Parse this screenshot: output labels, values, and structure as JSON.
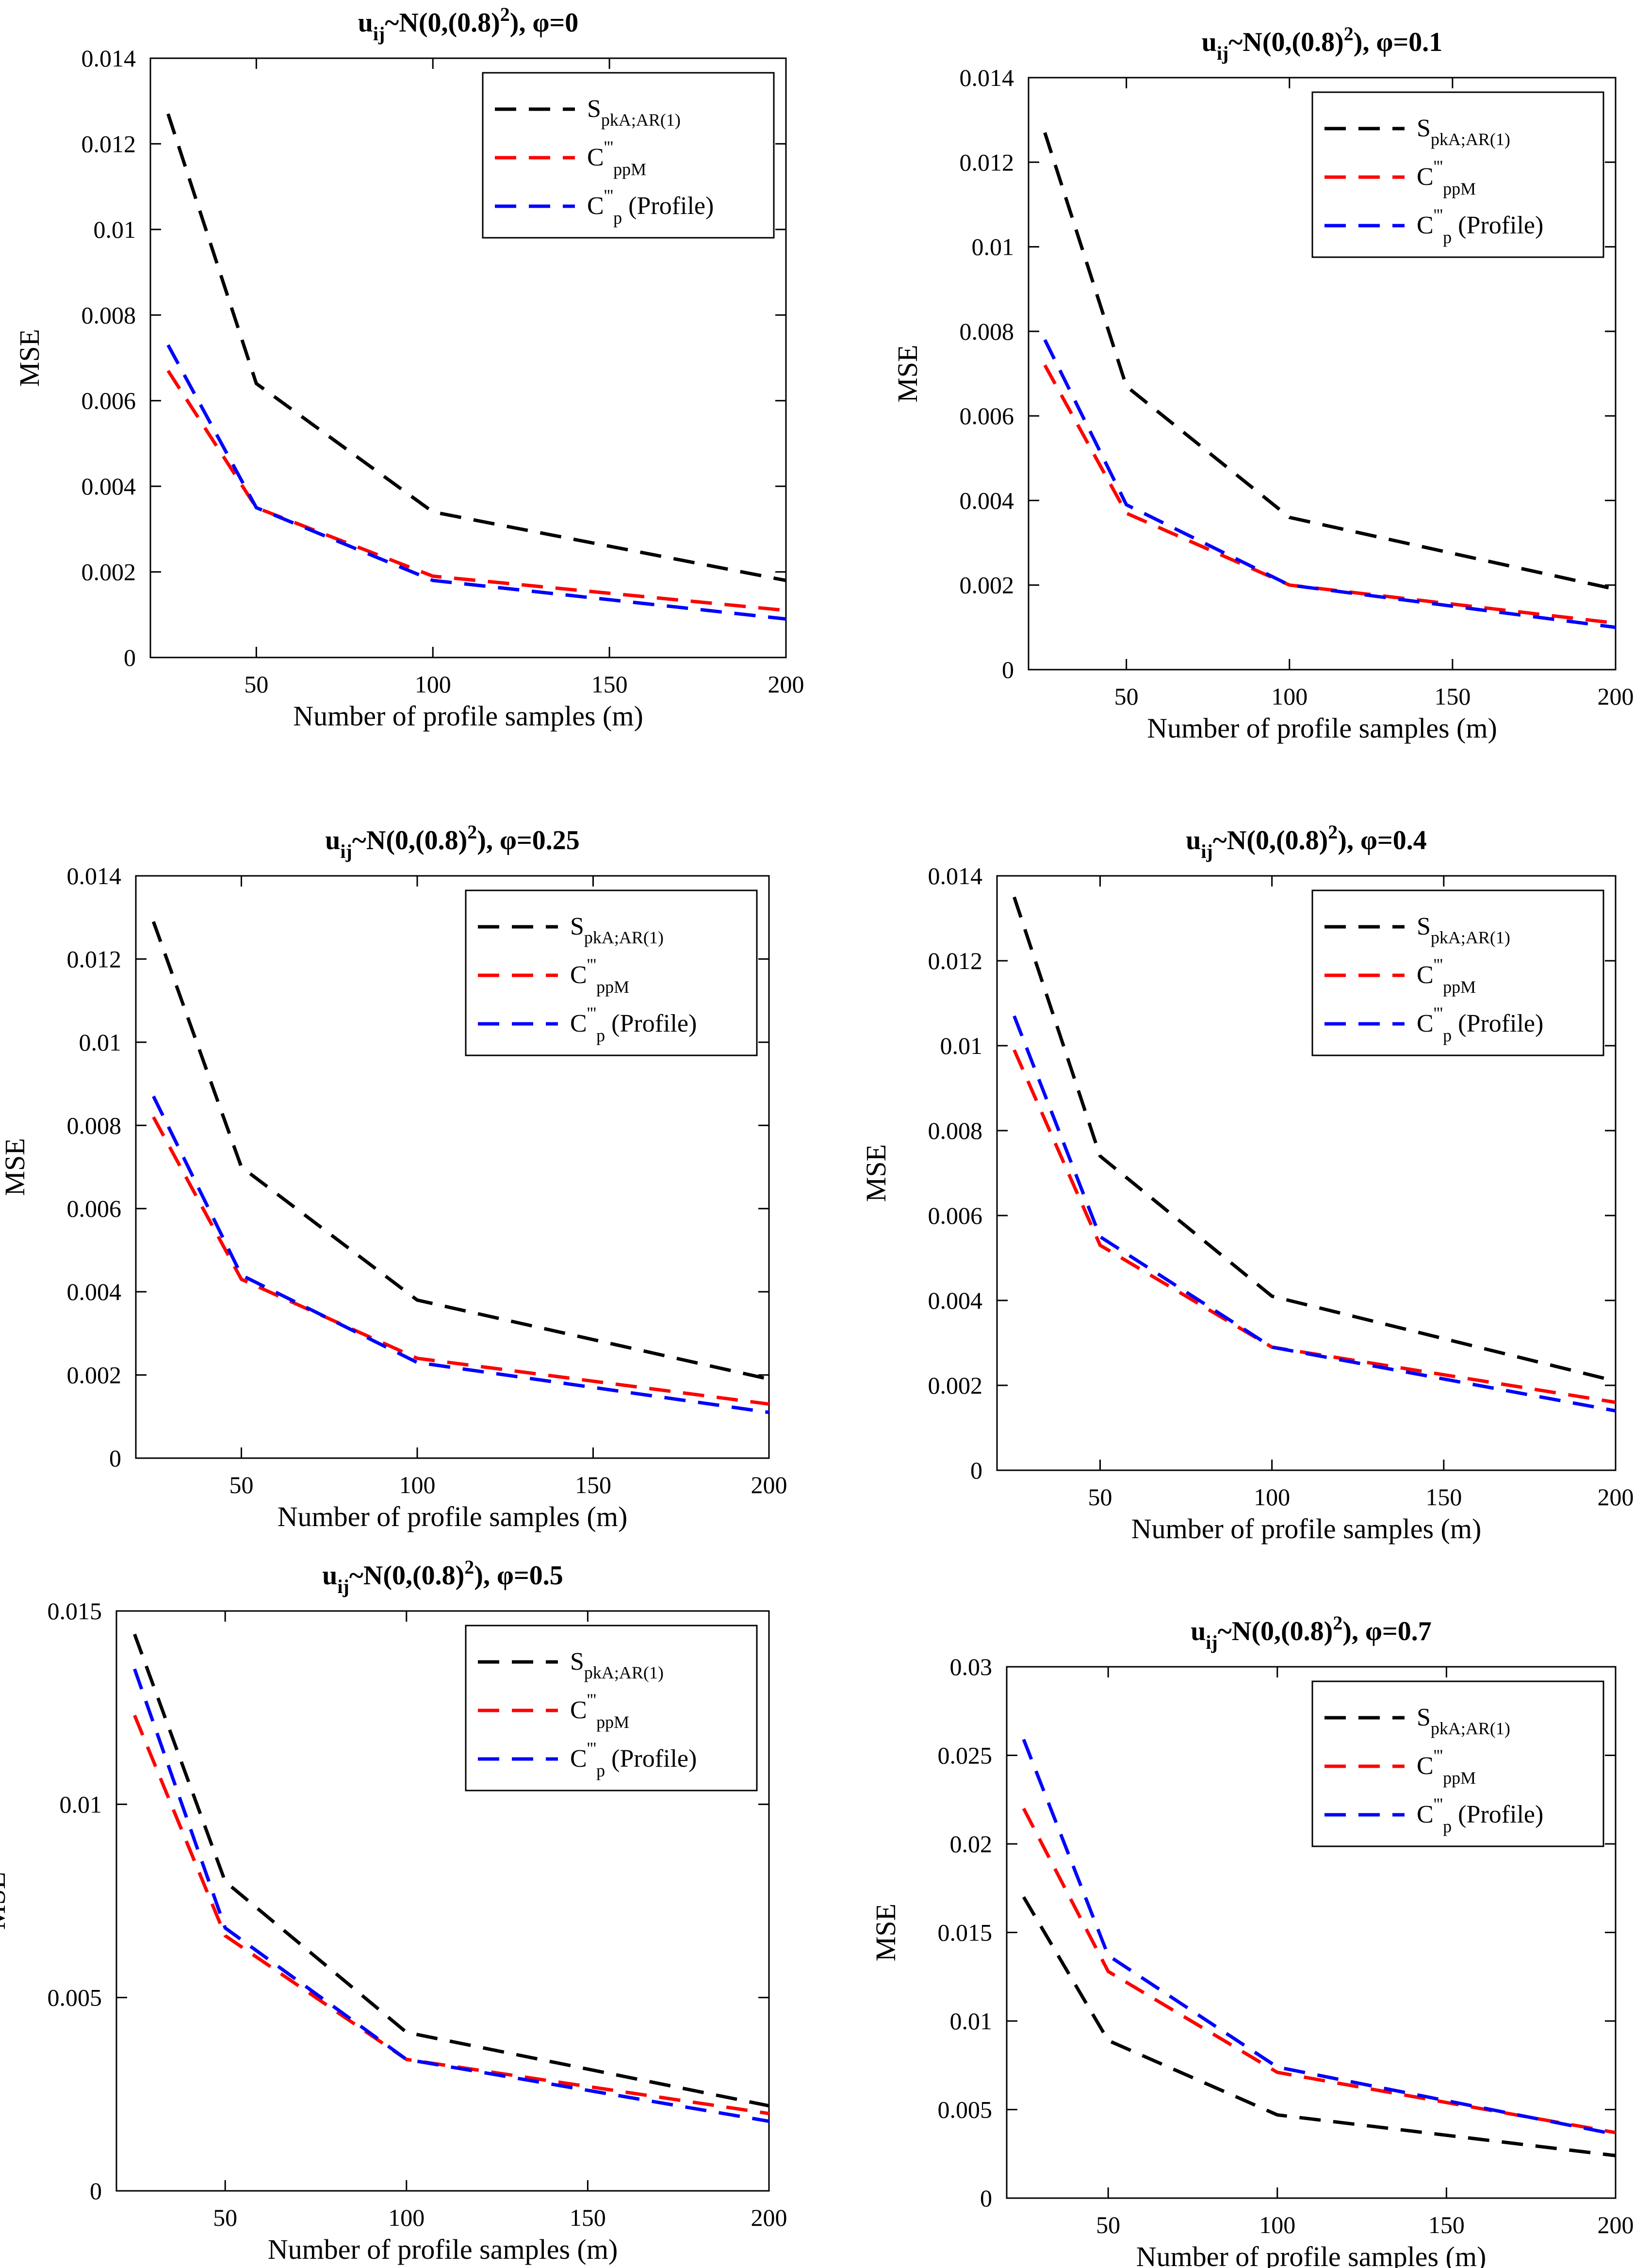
{
  "colors": {
    "S_pkA": "#000000",
    "C_ppM": "#ff0000",
    "C_p_profile": "#0000ff",
    "axis": "#000000",
    "background": "#ffffff"
  },
  "legend": [
    {
      "key": "S_pkA",
      "main": "S",
      "sub": "pkA;AR(1)",
      "sup": "",
      "tail": ""
    },
    {
      "key": "C_ppM",
      "main": "C",
      "sub": "ppM",
      "sup": "'''",
      "tail": ""
    },
    {
      "key": "C_p_profile",
      "main": "C",
      "sub": "p",
      "sup": "'''",
      "tail": " (Profile)"
    }
  ],
  "chart_data": [
    {
      "type": "line",
      "title": {
        "base": "u",
        "sub": "ij",
        "rest": "~N(0,(0.8)",
        "sup": "2",
        "end": "), φ=0"
      },
      "xlabel": "Number of profile samples (m)",
      "ylabel": "MSE",
      "x": [
        25,
        50,
        100,
        200
      ],
      "xlim": [
        20,
        200
      ],
      "ylim": [
        0,
        0.014
      ],
      "xticks": [
        "50",
        "100",
        "150",
        "200"
      ],
      "yticks": [
        "0",
        "0.002",
        "0.004",
        "0.006",
        "0.008",
        "0.01",
        "0.012",
        "0.014"
      ],
      "legend_position": "top-right",
      "series": [
        {
          "name": "S_pkA",
          "values": [
            0.0127,
            0.0064,
            0.0034,
            0.0018
          ]
        },
        {
          "name": "C_ppM",
          "values": [
            0.0067,
            0.0035,
            0.0019,
            0.0011
          ]
        },
        {
          "name": "C_p_profile",
          "values": [
            0.0073,
            0.0035,
            0.0018,
            0.0009
          ]
        }
      ]
    },
    {
      "type": "line",
      "title": {
        "base": "u",
        "sub": "ij",
        "rest": "~N(0,(0.8)",
        "sup": "2",
        "end": "), φ=0.1"
      },
      "xlabel": "Number of profile samples (m)",
      "ylabel": "MSE",
      "x": [
        25,
        50,
        100,
        200
      ],
      "xlim": [
        20,
        200
      ],
      "ylim": [
        0,
        0.014
      ],
      "xticks": [
        "50",
        "100",
        "150",
        "200"
      ],
      "yticks": [
        "0",
        "0.002",
        "0.004",
        "0.006",
        "0.008",
        "0.01",
        "0.012",
        "0.014"
      ],
      "legend_position": "top-right",
      "series": [
        {
          "name": "S_pkA",
          "values": [
            0.0127,
            0.0067,
            0.0036,
            0.0019
          ]
        },
        {
          "name": "C_ppM",
          "values": [
            0.0072,
            0.0037,
            0.002,
            0.0011
          ]
        },
        {
          "name": "C_p_profile",
          "values": [
            0.0078,
            0.0039,
            0.002,
            0.001
          ]
        }
      ]
    },
    {
      "type": "line",
      "title": {
        "base": "u",
        "sub": "ij",
        "rest": "~N(0,(0.8)",
        "sup": "2",
        "end": "), φ=0.25"
      },
      "xlabel": "Number of profile samples (m)",
      "ylabel": "MSE",
      "x": [
        25,
        50,
        100,
        200
      ],
      "xlim": [
        20,
        200
      ],
      "ylim": [
        0,
        0.014
      ],
      "xticks": [
        "50",
        "100",
        "150",
        "200"
      ],
      "yticks": [
        "0",
        "0.002",
        "0.004",
        "0.006",
        "0.008",
        "0.01",
        "0.012",
        "0.014"
      ],
      "legend_position": "top-right",
      "series": [
        {
          "name": "S_pkA",
          "values": [
            0.0129,
            0.007,
            0.0038,
            0.0019
          ]
        },
        {
          "name": "C_ppM",
          "values": [
            0.0082,
            0.0043,
            0.0024,
            0.0013
          ]
        },
        {
          "name": "C_p_profile",
          "values": [
            0.0087,
            0.0044,
            0.0023,
            0.0011
          ]
        }
      ]
    },
    {
      "type": "line",
      "title": {
        "base": "u",
        "sub": "ij",
        "rest": "~N(0,(0.8)",
        "sup": "2",
        "end": "), φ=0.4"
      },
      "xlabel": "Number of profile samples (m)",
      "ylabel": "MSE",
      "x": [
        25,
        50,
        100,
        200
      ],
      "xlim": [
        20,
        200
      ],
      "ylim": [
        0,
        0.014
      ],
      "xticks": [
        "50",
        "100",
        "150",
        "200"
      ],
      "yticks": [
        "0",
        "0.002",
        "0.004",
        "0.006",
        "0.008",
        "0.01",
        "0.012",
        "0.014"
      ],
      "legend_position": "top-right",
      "series": [
        {
          "name": "S_pkA",
          "values": [
            0.0135,
            0.0074,
            0.0041,
            0.0021
          ]
        },
        {
          "name": "C_ppM",
          "values": [
            0.0099,
            0.0053,
            0.0029,
            0.0016
          ]
        },
        {
          "name": "C_p_profile",
          "values": [
            0.0107,
            0.0055,
            0.0029,
            0.0014
          ]
        }
      ]
    },
    {
      "type": "line",
      "title": {
        "base": "u",
        "sub": "ij",
        "rest": "~N(0,(0.8)",
        "sup": "2",
        "end": "), φ=0.5"
      },
      "xlabel": "Number of profile samples (m)",
      "ylabel": "MSE",
      "x": [
        25,
        50,
        100,
        200
      ],
      "xlim": [
        20,
        200
      ],
      "ylim": [
        0,
        0.015
      ],
      "xticks": [
        "50",
        "100",
        "150",
        "200"
      ],
      "yticks": [
        "0",
        "0.005",
        "0.01",
        "0.015"
      ],
      "legend_position": "top-right",
      "series": [
        {
          "name": "S_pkA",
          "values": [
            0.0144,
            0.008,
            0.0041,
            0.0022
          ]
        },
        {
          "name": "C_ppM",
          "values": [
            0.0123,
            0.0066,
            0.0034,
            0.002
          ]
        },
        {
          "name": "C_p_profile",
          "values": [
            0.0135,
            0.0068,
            0.0034,
            0.0018
          ]
        }
      ]
    },
    {
      "type": "line",
      "title": {
        "base": "u",
        "sub": "ij",
        "rest": "~N(0,(0.8)",
        "sup": "2",
        "end": "), φ=0.7"
      },
      "xlabel": "Number of profile samples (m)",
      "ylabel": "MSE",
      "x": [
        25,
        50,
        100,
        200
      ],
      "xlim": [
        20,
        200
      ],
      "ylim": [
        0,
        0.03
      ],
      "xticks": [
        "50",
        "100",
        "150",
        "200"
      ],
      "yticks": [
        "0",
        "0.005",
        "0.01",
        "0.015",
        "0.02",
        "0.025",
        "0.03"
      ],
      "legend_position": "top-right",
      "series": [
        {
          "name": "S_pkA",
          "values": [
            0.017,
            0.0089,
            0.0047,
            0.0024
          ]
        },
        {
          "name": "C_ppM",
          "values": [
            0.022,
            0.0128,
            0.0071,
            0.0037
          ]
        },
        {
          "name": "C_p_profile",
          "values": [
            0.0259,
            0.0137,
            0.0074,
            0.0036
          ]
        }
      ]
    }
  ]
}
